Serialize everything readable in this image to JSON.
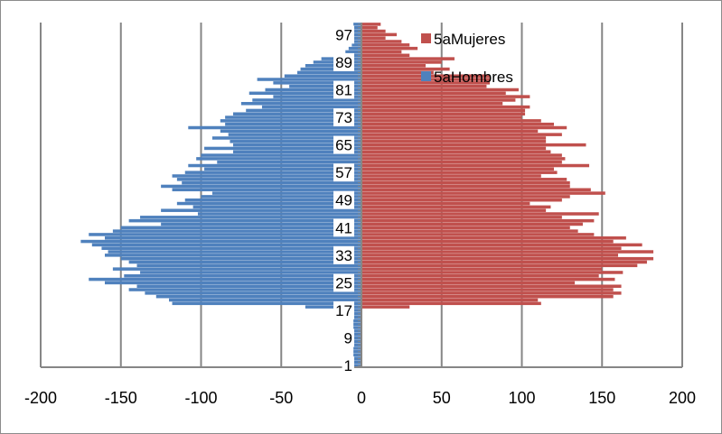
{
  "chart_data": {
    "type": "bar",
    "orientation": "horizontal",
    "subtype": "population-pyramid",
    "title": "",
    "xlabel": "",
    "ylabel": "",
    "xlim": [
      -200,
      200
    ],
    "x_ticks": [
      -200,
      -150,
      -100,
      -50,
      0,
      50,
      100,
      150,
      200
    ],
    "y_tick_labels": [
      "1",
      "9",
      "17",
      "25",
      "33",
      "41",
      "49",
      "57",
      "65",
      "73",
      "81",
      "89",
      "97"
    ],
    "ages": [
      1,
      2,
      3,
      4,
      5,
      6,
      7,
      8,
      9,
      10,
      11,
      12,
      13,
      14,
      15,
      16,
      17,
      18,
      19,
      20,
      21,
      22,
      23,
      24,
      25,
      26,
      27,
      28,
      29,
      30,
      31,
      32,
      33,
      34,
      35,
      36,
      37,
      38,
      39,
      40,
      41,
      42,
      43,
      44,
      45,
      46,
      47,
      48,
      49,
      50,
      51,
      52,
      53,
      54,
      55,
      56,
      57,
      58,
      59,
      60,
      61,
      62,
      63,
      64,
      65,
      66,
      67,
      68,
      69,
      70,
      71,
      72,
      73,
      74,
      75,
      76,
      77,
      78,
      79,
      80,
      81,
      82,
      83,
      84,
      85,
      86,
      87,
      88,
      89,
      90,
      91,
      92,
      93,
      94,
      95,
      96,
      97,
      98,
      99,
      100
    ],
    "grid": "vertical",
    "legend_position": "top-right-inside",
    "series": [
      {
        "name": "5aMujeres",
        "color": "#c0504d",
        "values": [
          0,
          0,
          0,
          0,
          0,
          0,
          0,
          0,
          0,
          0,
          0,
          0,
          0,
          0,
          0,
          0,
          0,
          30,
          112,
          110,
          157,
          162,
          157,
          162,
          133,
          158,
          148,
          163,
          150,
          172,
          178,
          182,
          160,
          182,
          162,
          175,
          157,
          165,
          145,
          135,
          130,
          138,
          145,
          125,
          148,
          115,
          118,
          105,
          125,
          130,
          152,
          143,
          130,
          130,
          128,
          112,
          122,
          120,
          142,
          125,
          127,
          125,
          118,
          115,
          140,
          115,
          115,
          125,
          110,
          128,
          120,
          112,
          100,
          102,
          102,
          105,
          88,
          96,
          105,
          90,
          98,
          78,
          80,
          80,
          80,
          45,
          55,
          40,
          50,
          58,
          30,
          25,
          35,
          30,
          25,
          15,
          22,
          15,
          10,
          12
        ]
      },
      {
        "name": "5aHombres",
        "color": "#4f81bd",
        "values": [
          -5,
          -5,
          -5,
          -5,
          -5,
          -5,
          -5,
          -5,
          -5,
          -5,
          -5,
          -5,
          -5,
          -5,
          -5,
          -5,
          -5,
          -35,
          -118,
          -120,
          -128,
          -135,
          -145,
          -140,
          -160,
          -170,
          -148,
          -138,
          -155,
          -140,
          -145,
          -150,
          -160,
          -158,
          -162,
          -168,
          -175,
          -160,
          -170,
          -155,
          -150,
          -125,
          -145,
          -138,
          -102,
          -125,
          -105,
          -115,
          -110,
          -100,
          -93,
          -118,
          -125,
          -112,
          -115,
          -118,
          -110,
          -98,
          -108,
          -90,
          -103,
          -100,
          -80,
          -98,
          -80,
          -82,
          -93,
          -83,
          -88,
          -108,
          -85,
          -88,
          -85,
          -80,
          -72,
          -62,
          -75,
          -68,
          -55,
          -70,
          -60,
          -45,
          -55,
          -65,
          -48,
          -40,
          -38,
          -35,
          -30,
          -25,
          -15,
          -10,
          -8,
          -6,
          -6,
          -5,
          -5,
          -5,
          -5,
          -5
        ]
      }
    ]
  }
}
